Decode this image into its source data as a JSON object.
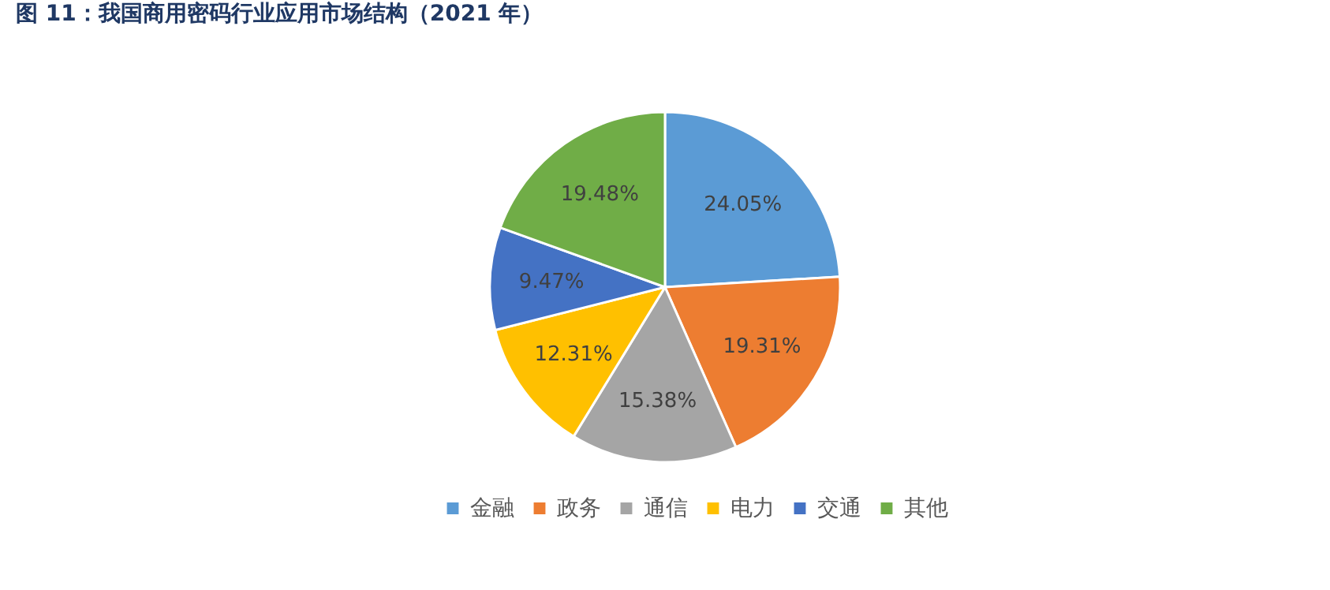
{
  "chart_data": {
    "type": "pie",
    "title": "图 11：我国商用密码行业应用市场结构（2021 年）",
    "categories": [
      "金融",
      "政务",
      "通信",
      "电力",
      "交通",
      "其他"
    ],
    "values": [
      24.05,
      19.31,
      15.38,
      12.31,
      9.47,
      19.48
    ],
    "colors": [
      "#5b9bd5",
      "#ed7d31",
      "#a5a5a5",
      "#ffc000",
      "#4472c4",
      "#70ad47"
    ],
    "value_labels": [
      "24.05%",
      "19.31%",
      "15.38%",
      "12.31%",
      "9.47%",
      "19.48%"
    ],
    "legend": "bottom"
  }
}
